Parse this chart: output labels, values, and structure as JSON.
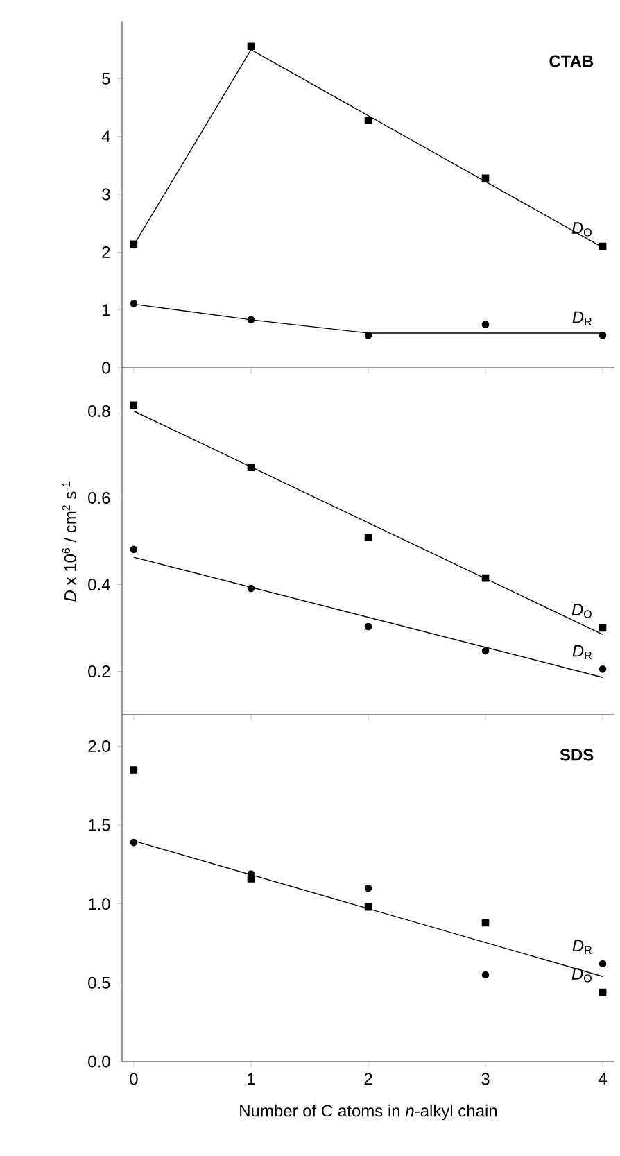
{
  "chart_data": [
    {
      "type": "scatter",
      "title": "CTAB",
      "x": [
        0,
        1,
        2,
        3,
        4
      ],
      "xlim": [
        -0.1,
        4.1
      ],
      "xticks": [
        0,
        1,
        2,
        3,
        4
      ],
      "ylim": [
        0,
        6
      ],
      "yticks": [
        0,
        1,
        2,
        3,
        4,
        5
      ],
      "tick_labels": "y",
      "series": [
        {
          "name": "*D*$_{O}$",
          "marker": "square",
          "color": "#000000",
          "values": [
            2.14,
            5.56,
            4.28,
            3.28,
            2.1
          ]
        },
        {
          "name": "*D*$_{R}$",
          "marker": "circle",
          "color": "#000000",
          "values": [
            1.11,
            0.83,
            0.56,
            0.75,
            0.56
          ]
        },
        {
          "type": "line",
          "marker": "none",
          "color": "#000000",
          "x": [
            0,
            1,
            4
          ],
          "values": [
            2.12,
            5.5,
            2.08
          ]
        },
        {
          "type": "line",
          "marker": "none",
          "color": "#000000",
          "x": [
            0,
            1,
            2,
            4
          ],
          "values": [
            1.1,
            0.83,
            0.6,
            0.6
          ]
        }
      ]
    },
    {
      "type": "scatter",
      "ylabel": "*D* x 10$^{6}$ / cm$^{2}$ s$^{-1}$",
      "x": [
        0,
        1,
        2,
        3,
        4
      ],
      "xlim": [
        -0.1,
        4.1
      ],
      "xticks": [
        0,
        1,
        2,
        3,
        4
      ],
      "ylim": [
        0.1,
        0.9
      ],
      "yticks": [
        0.2,
        0.4,
        0.6,
        0.8
      ],
      "tick_labels": "y",
      "series": [
        {
          "name": "*D*$_{O}$",
          "marker": "square",
          "color": "#000000",
          "values": [
            0.814,
            0.67,
            0.509,
            0.415,
            0.3
          ]
        },
        {
          "name": "*D*$_{R}$",
          "marker": "circle",
          "color": "#000000",
          "values": [
            0.481,
            0.391,
            0.303,
            0.247,
            0.205
          ]
        },
        {
          "type": "line",
          "marker": "none",
          "color": "#000000",
          "x": [
            0,
            4
          ],
          "values": [
            0.8,
            0.285
          ]
        },
        {
          "type": "line",
          "marker": "none",
          "color": "#000000",
          "x": [
            0,
            4
          ],
          "values": [
            0.463,
            0.186
          ]
        }
      ]
    },
    {
      "type": "scatter",
      "title": "SDS",
      "xlabel": "Number of C atoms in *n*-alkyl chain",
      "x": [
        0,
        1,
        2,
        3,
        4
      ],
      "xlim": [
        -0.1,
        4.1
      ],
      "xticks": [
        0,
        1,
        2,
        3,
        4
      ],
      "ylim": [
        0,
        2.2
      ],
      "yticks": [
        {
          "value": 0,
          "label": "0.0"
        },
        0.5,
        {
          "value": 1,
          "label": "1.0"
        },
        1.5,
        {
          "value": 2,
          "label": "2.0"
        }
      ],
      "series": [
        {
          "name": "*D*$_{O}$",
          "marker": "square",
          "color": "#000000",
          "values": [
            1.85,
            1.16,
            0.98,
            0.88,
            0.44
          ]
        },
        {
          "name": "*D*$_{R}$",
          "marker": "circle",
          "color": "#000000",
          "values": [
            1.39,
            1.19,
            1.1,
            0.55,
            0.62
          ]
        },
        {
          "type": "line",
          "marker": "none",
          "color": "#000000",
          "x": [
            0,
            4
          ],
          "values": [
            1.4,
            0.54
          ]
        }
      ]
    }
  ]
}
